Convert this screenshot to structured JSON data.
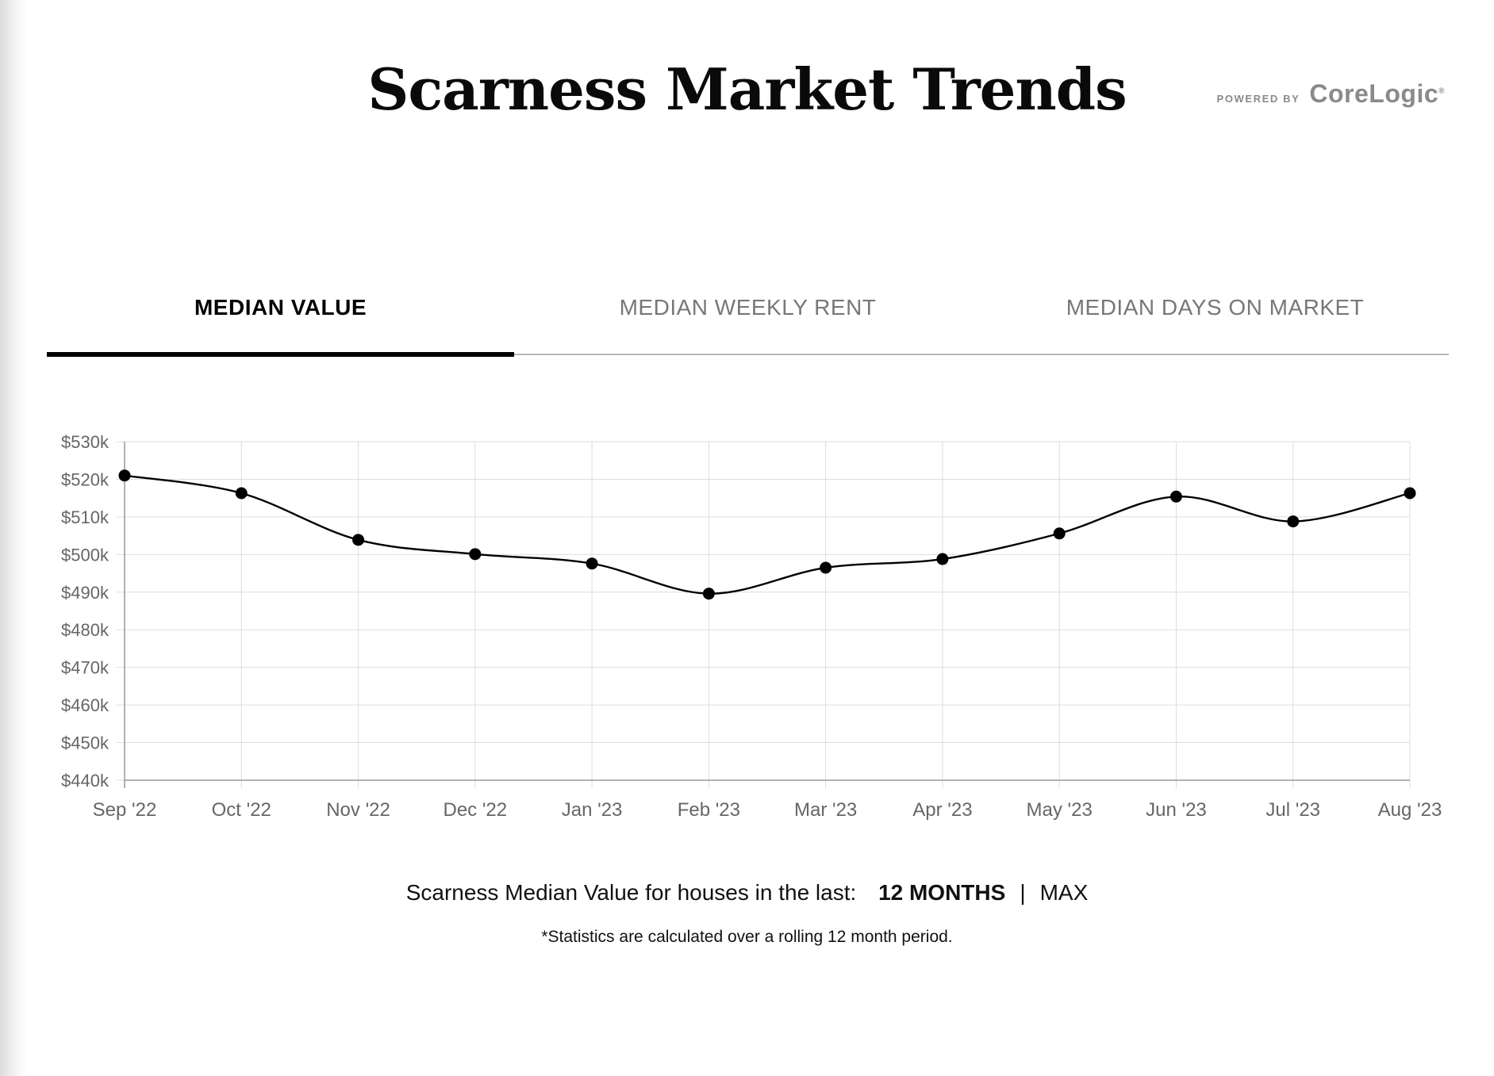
{
  "header": {
    "title": "Scarness Market Trends",
    "powered_by": "POWERED BY",
    "brand": "CoreLogic",
    "brand_mark": "®"
  },
  "tabs": [
    {
      "label": "MEDIAN VALUE",
      "active": true
    },
    {
      "label": "MEDIAN WEEKLY RENT",
      "active": false
    },
    {
      "label": "MEDIAN DAYS ON MARKET",
      "active": false
    }
  ],
  "summary": {
    "lead": "Scarness Median Value for houses in the last:",
    "options": [
      "12 MONTHS",
      "MAX"
    ],
    "selected": "12 MONTHS",
    "separator": "|",
    "footnote": "*Statistics are calculated over a rolling 12 month period."
  },
  "colors": {
    "line": "#000000",
    "grid": "#dddddd",
    "axis": "#999999",
    "tick_text": "#666666"
  },
  "chart_data": {
    "type": "line",
    "categories": [
      "Sep '22",
      "Oct '22",
      "Nov '22",
      "Dec '22",
      "Jan '23",
      "Feb '23",
      "Mar '23",
      "Apr '23",
      "May '23",
      "Jun '23",
      "Jul '23",
      "Aug '23"
    ],
    "series": [
      {
        "values": [
          521000,
          516300,
          503900,
          500100,
          497600,
          489600,
          496500,
          498800,
          505600,
          515400,
          508800,
          516300
        ]
      }
    ],
    "ylim": [
      440000,
      530000
    ],
    "yticks": [
      530000,
      520000,
      510000,
      500000,
      490000,
      480000,
      470000,
      460000,
      450000,
      440000
    ],
    "ytick_labels": [
      "$530k",
      "$520k",
      "$510k",
      "$500k",
      "$490k",
      "$480k",
      "$470k",
      "$460k",
      "$450k",
      "$440k"
    ],
    "smooth": true,
    "markers": true,
    "grid": true,
    "title": "",
    "xlabel": "",
    "ylabel": ""
  }
}
